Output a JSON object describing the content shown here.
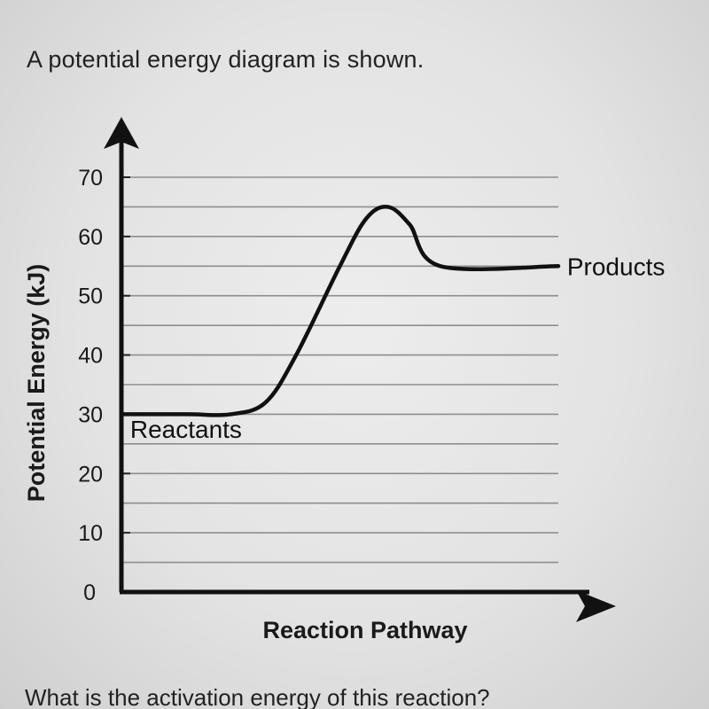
{
  "question": {
    "prompt": "A potential energy diagram is shown.",
    "followup": "What is the activation energy of this reaction?"
  },
  "chart_data": {
    "type": "line",
    "ylabel": "Potential Energy (kJ)",
    "xlabel": "Reaction Pathway",
    "ylim": [
      0,
      70
    ],
    "yticks": [
      0,
      10,
      20,
      30,
      40,
      50,
      60,
      70
    ],
    "ytick_labels": [
      "0",
      "10",
      "20",
      "30",
      "40",
      "50",
      "60",
      "70"
    ],
    "minor_gridline_step": 5,
    "grid": true,
    "series": [
      {
        "x": [
          0,
          0.15,
          0.25,
          0.33,
          0.4,
          0.5,
          0.56,
          0.61,
          0.66,
          0.73,
          1.0
        ],
        "y": [
          30,
          30,
          30,
          32,
          40,
          55,
          63,
          65,
          62,
          55,
          55
        ],
        "color": "#111111"
      }
    ],
    "annotations": [
      {
        "text": "Reactants",
        "x": 0.02,
        "y": 27.5
      },
      {
        "text": "Products",
        "x": 1.02,
        "y": 55
      }
    ]
  }
}
